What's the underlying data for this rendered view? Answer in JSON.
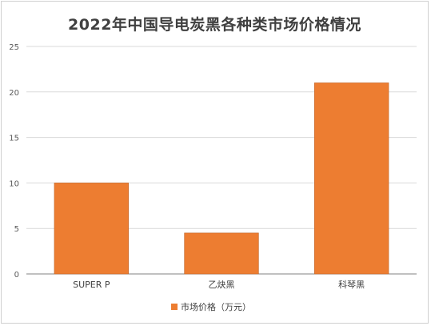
{
  "chart_data": {
    "type": "bar",
    "title": "2022年中国导电炭黑各种类市场价格情况",
    "categories": [
      "SUPER P",
      "乙炔黑",
      "科琴黑"
    ],
    "series": [
      {
        "name": "市场价格（万元）",
        "values": [
          10,
          4.5,
          21
        ],
        "color": "#ED7D31"
      }
    ],
    "yticks": [
      "0",
      "5",
      "10",
      "15",
      "20",
      "25"
    ],
    "ylim": [
      0,
      25
    ],
    "grid": true,
    "legend_position": "bottom"
  }
}
